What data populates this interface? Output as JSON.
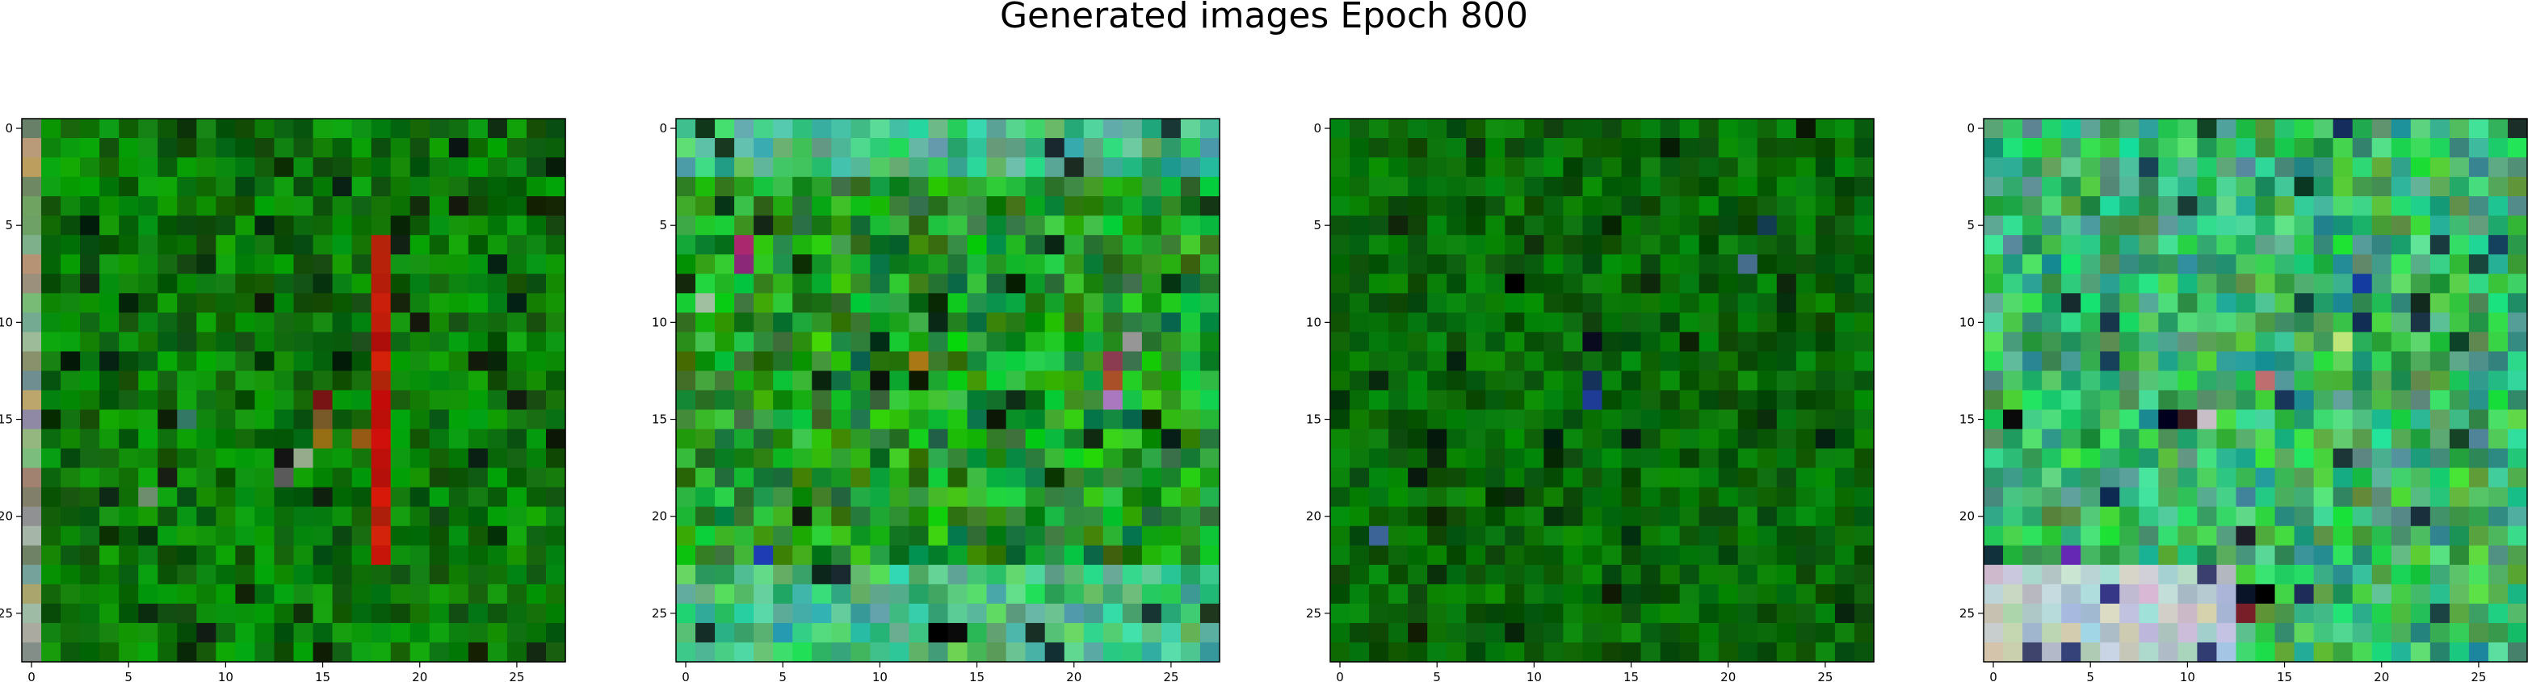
{
  "figure": {
    "title": "Generated images Epoch 800"
  },
  "chart_data": [
    {
      "type": "heatmap",
      "title": "",
      "xlabel": "",
      "ylabel": "",
      "xlim": [
        -0.5,
        27.5
      ],
      "ylim": [
        27.5,
        -0.5
      ],
      "x_ticks": [
        0,
        5,
        10,
        15,
        20,
        25
      ],
      "y_ticks": [
        0,
        5,
        10,
        15,
        20,
        25
      ],
      "grid": false,
      "pixels": "28x28 RGB image, predominantly green noise with a red vertical stripe at column 18 spanning rows 6-22 and dark pixels scattered"
    },
    {
      "type": "heatmap",
      "title": "",
      "xlabel": "",
      "ylabel": "",
      "xlim": [
        -0.5,
        27.5
      ],
      "ylim": [
        27.5,
        -0.5
      ],
      "x_ticks": [
        0,
        5,
        10,
        15,
        20,
        25
      ],
      "y_ticks": [
        0,
        5,
        10,
        15,
        20,
        25
      ],
      "grid": false,
      "pixels": "28x28 RGB image, green noise with lighter cyan-green band at top and bottom rows 23-26, a few magenta, blue and orange pixels"
    },
    {
      "type": "heatmap",
      "title": "",
      "xlabel": "",
      "ylabel": "",
      "xlim": [
        -0.5,
        27.5
      ],
      "ylim": [
        27.5,
        -0.5
      ],
      "x_ticks": [
        0,
        5,
        10,
        15,
        20,
        25
      ],
      "y_ticks": [
        0,
        5,
        10,
        15,
        20,
        25
      ],
      "grid": false,
      "pixels": "28x28 RGB image, darker green noise, a few dark blue/black pixels around column 13-14 rows 11-15"
    },
    {
      "type": "heatmap",
      "title": "",
      "xlabel": "",
      "ylabel": "",
      "xlim": [
        -0.5,
        27.5
      ],
      "ylim": [
        27.5,
        -0.5
      ],
      "x_ticks": [
        0,
        5,
        10,
        15,
        20,
        25
      ],
      "y_ticks": [
        0,
        5,
        10,
        15,
        20,
        25
      ],
      "grid": false,
      "pixels": "28x28 RGB image, bright green/cyan noise, pale whitish-lavender patch rows 23-27 columns 0-12, scattered purple and navy pixels"
    }
  ],
  "style": {
    "axes_edge_color": "#000000",
    "tick_color": "#000000"
  }
}
